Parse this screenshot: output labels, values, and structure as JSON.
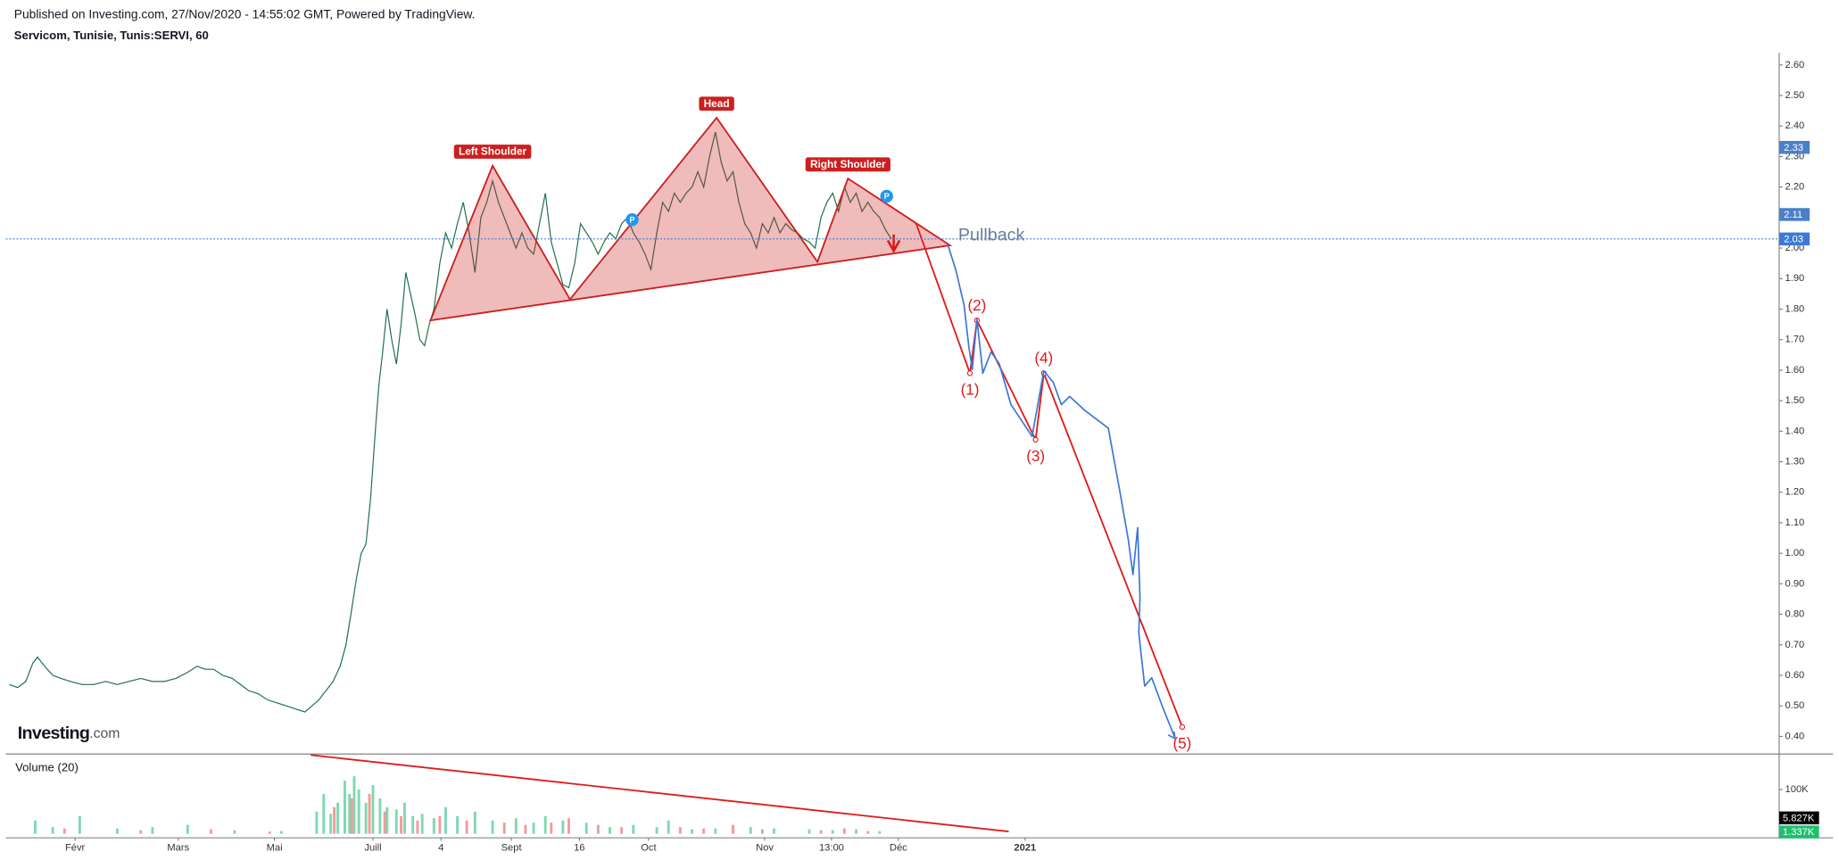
{
  "header": {
    "published": "Published on Investing.com, 27/Nov/2020 - 14:55:02 GMT, Powered by TradingView.",
    "symbol": "Servicom, Tunisie, Tunis:SERVI, 60"
  },
  "logo": {
    "name": "Investing",
    "suffix": ".com"
  },
  "chart_data": [
    {
      "type": "line",
      "xlim": [
        5,
        1515
      ],
      "ylim": [
        0.35,
        2.64
      ],
      "yticks": [
        {
          "value": 0.4,
          "label": "0.40"
        },
        {
          "value": 0.5,
          "label": "0.50"
        },
        {
          "value": 0.6,
          "label": "0.60"
        },
        {
          "value": 0.7,
          "label": "0.70"
        },
        {
          "value": 0.8,
          "label": "0.80"
        },
        {
          "value": 0.9,
          "label": "0.90"
        },
        {
          "value": 1.0,
          "label": "1.00"
        },
        {
          "value": 1.1,
          "label": "1.10"
        },
        {
          "value": 1.2,
          "label": "1.20"
        },
        {
          "value": 1.3,
          "label": "1.30"
        },
        {
          "value": 1.4,
          "label": "1.40"
        },
        {
          "value": 1.5,
          "label": "1.50"
        },
        {
          "value": 1.6,
          "label": "1.60"
        },
        {
          "value": 1.7,
          "label": "1.70"
        },
        {
          "value": 1.8,
          "label": "1.80"
        },
        {
          "value": 1.9,
          "label": "1.90"
        },
        {
          "value": 2.0,
          "label": "2.00"
        },
        {
          "value": 2.1,
          "label": "2.10"
        },
        {
          "value": 2.2,
          "label": "2.20"
        },
        {
          "value": 2.3,
          "label": "2.30"
        },
        {
          "value": 2.4,
          "label": "2.40"
        },
        {
          "value": 2.5,
          "label": "2.50"
        },
        {
          "value": 2.6,
          "label": "2.60"
        }
      ],
      "grid": false,
      "series": [
        {
          "color": "#1f6f4a",
          "x": [
            8,
            15,
            22,
            28,
            32,
            38,
            45,
            52,
            60,
            70,
            80,
            90,
            100,
            110,
            120,
            130,
            140,
            150,
            160,
            168,
            175,
            182,
            190,
            198,
            205,
            212,
            220,
            228,
            236,
            244,
            252,
            260,
            266,
            272,
            278,
            284,
            290,
            295,
            300,
            304,
            308,
            312,
            316,
            320,
            323,
            326,
            330,
            334,
            338,
            342,
            346,
            350,
            354,
            358,
            362,
            366,
            370,
            375,
            380,
            385,
            390,
            395,
            400,
            405,
            410,
            415,
            420,
            425,
            430,
            435,
            440,
            445,
            450,
            455,
            460,
            465,
            470,
            475,
            480,
            485,
            490,
            495,
            500,
            505,
            510,
            515,
            520,
            525,
            530,
            535,
            540,
            545,
            550,
            555,
            560,
            565,
            570,
            575,
            580,
            585,
            590,
            595,
            600,
            605,
            610,
            615,
            620,
            625,
            630,
            635,
            640,
            645,
            650,
            655,
            660,
            665,
            670,
            675,
            680,
            685,
            690,
            695,
            700,
            705,
            710,
            715,
            720,
            725,
            730,
            735,
            740,
            745,
            750,
            755,
            760
          ],
          "values": [
            0.57,
            0.56,
            0.58,
            0.64,
            0.66,
            0.63,
            0.6,
            0.59,
            0.58,
            0.57,
            0.57,
            0.58,
            0.57,
            0.58,
            0.59,
            0.58,
            0.58,
            0.59,
            0.61,
            0.63,
            0.62,
            0.62,
            0.6,
            0.59,
            0.57,
            0.55,
            0.54,
            0.52,
            0.51,
            0.5,
            0.49,
            0.48,
            0.5,
            0.52,
            0.55,
            0.58,
            0.63,
            0.7,
            0.82,
            0.92,
            1.0,
            1.03,
            1.18,
            1.4,
            1.55,
            1.65,
            1.8,
            1.7,
            1.62,
            1.75,
            1.92,
            1.85,
            1.78,
            1.7,
            1.68,
            1.75,
            1.8,
            1.95,
            2.05,
            2.0,
            2.08,
            2.15,
            2.05,
            1.92,
            2.1,
            2.15,
            2.22,
            2.15,
            2.1,
            2.05,
            2.0,
            2.05,
            2.0,
            1.98,
            2.08,
            2.18,
            2.02,
            1.95,
            1.88,
            1.87,
            1.95,
            2.08,
            2.05,
            2.02,
            1.98,
            2.02,
            2.05,
            2.03,
            2.08,
            2.1,
            2.05,
            2.02,
            1.98,
            1.93,
            2.05,
            2.15,
            2.12,
            2.18,
            2.15,
            2.18,
            2.2,
            2.25,
            2.2,
            2.3,
            2.38,
            2.28,
            2.22,
            2.25,
            2.15,
            2.08,
            2.05,
            2.0,
            2.08,
            2.05,
            2.1,
            2.05,
            2.08,
            2.06,
            2.05,
            2.03,
            2.02,
            2.0,
            2.1,
            2.15,
            2.18,
            2.12,
            2.2,
            2.15,
            2.18,
            2.12,
            2.15,
            2.12,
            2.1,
            2.06,
            2.03
          ]
        }
      ],
      "price_labels": [
        {
          "value": 2.33,
          "color": "#4a80c8"
        },
        {
          "value": 2.11,
          "color": "#4a80c8"
        },
        {
          "value": 2.03,
          "color": "#3d7ad6",
          "line": true
        }
      ],
      "head_and_shoulders": {
        "labels": [
          "Left Shoulder",
          "Head",
          "Right Shoulder"
        ],
        "color": "#cc1f1f",
        "x": [
          367,
          420,
          486,
          611,
          697,
          723,
          810
        ],
        "values": [
          1.763,
          2.27,
          1.832,
          2.427,
          1.955,
          2.228,
          2.009
        ]
      },
      "wave": {
        "labels": [
          "(1)",
          "(2)",
          "(3)",
          "(4)",
          "(5)"
        ],
        "color": "#e01b1b",
        "x": [
          781,
          827,
          833,
          883,
          890,
          1008
        ],
        "values": [
          2.082,
          1.59,
          1.763,
          1.372,
          1.59,
          0.431
        ]
      },
      "projection": {
        "color": "#3c78d8",
        "x": [
          808,
          815,
          822,
          826,
          829,
          833,
          838,
          845,
          852,
          862,
          880,
          890,
          898,
          905,
          912,
          925,
          945,
          955,
          962,
          966,
          970,
          972,
          971,
          976,
          982,
          992,
          1002
        ],
        "values": [
          2.013,
          1.928,
          1.813,
          1.679,
          1.602,
          1.767,
          1.59,
          1.66,
          1.621,
          1.487,
          1.383,
          1.598,
          1.56,
          1.487,
          1.514,
          1.468,
          1.41,
          1.199,
          1.045,
          0.93,
          1.084,
          0.853,
          0.738,
          0.565,
          0.592,
          0.489,
          0.393
        ]
      },
      "pullback": {
        "text": "Pullback",
        "x": 817,
        "value": 2.04
      },
      "markers": [
        {
          "label": "P",
          "x": 539,
          "value": 2.093
        },
        {
          "label": "P",
          "x": 756,
          "value": 2.17
        }
      ]
    },
    {
      "type": "bar",
      "title": "Volume (20)",
      "xlim": [
        5,
        1515
      ],
      "ylim": [
        0,
        175000
      ],
      "yticks": [
        {
          "value": 100000,
          "label": "100K"
        }
      ],
      "xticks": [
        {
          "value": 64,
          "label": "Févr"
        },
        {
          "value": 152,
          "label": "Mars"
        },
        {
          "value": 234,
          "label": "Mai"
        },
        {
          "value": 318,
          "label": "Juill"
        },
        {
          "value": 376,
          "label": "4"
        },
        {
          "value": 436,
          "label": "Sept"
        },
        {
          "value": 494,
          "label": "16"
        },
        {
          "value": 553,
          "label": "Oct"
        },
        {
          "value": 652,
          "label": "Nov"
        },
        {
          "value": 709,
          "label": "13:00"
        },
        {
          "value": 766,
          "label": "Déc"
        },
        {
          "value": 874,
          "label": "2021"
        }
      ],
      "series": [
        {
          "color": "#7fd8b0",
          "x": [
            30,
            45,
            68,
            100,
            130,
            160,
            200,
            240,
            270,
            276,
            282,
            288,
            294,
            298,
            302,
            306,
            312,
            318,
            324,
            330,
            338,
            345,
            352,
            360,
            370,
            380,
            390,
            405,
            420,
            440,
            455,
            465,
            480,
            500,
            520,
            540,
            560,
            570,
            590,
            610,
            640,
            660,
            690,
            710,
            730,
            750
          ],
          "values": [
            30000,
            15000,
            40000,
            12000,
            15000,
            20000,
            8000,
            6000,
            50000,
            90000,
            45000,
            70000,
            120000,
            90000,
            130000,
            100000,
            70000,
            110000,
            80000,
            60000,
            55000,
            70000,
            40000,
            45000,
            35000,
            60000,
            40000,
            50000,
            30000,
            35000,
            25000,
            40000,
            30000,
            25000,
            15000,
            20000,
            15000,
            30000,
            10000,
            12000,
            15000,
            12000,
            10000,
            8000,
            10000,
            6000
          ]
        },
        {
          "color": "#f29a9a",
          "x": [
            55,
            120,
            180,
            230,
            285,
            300,
            315,
            328,
            342,
            356,
            375,
            398,
            430,
            448,
            470,
            485,
            510,
            530,
            580,
            600,
            625,
            650,
            700,
            720,
            740
          ],
          "values": [
            12000,
            8000,
            10000,
            5000,
            60000,
            80000,
            90000,
            50000,
            40000,
            30000,
            40000,
            30000,
            25000,
            20000,
            25000,
            35000,
            20000,
            15000,
            15000,
            12000,
            20000,
            10000,
            8000,
            12000,
            6000
          ]
        }
      ],
      "trendline": {
        "color": "#e01b1b",
        "x": [
          265,
          860
        ],
        "values": [
          178000,
          5000
        ]
      },
      "value_labels": [
        {
          "value": 5827,
          "label": "5.827K",
          "color": "#000000"
        },
        {
          "value": 1337,
          "label": "1.337K",
          "color": "#1fbf6f"
        }
      ]
    }
  ]
}
